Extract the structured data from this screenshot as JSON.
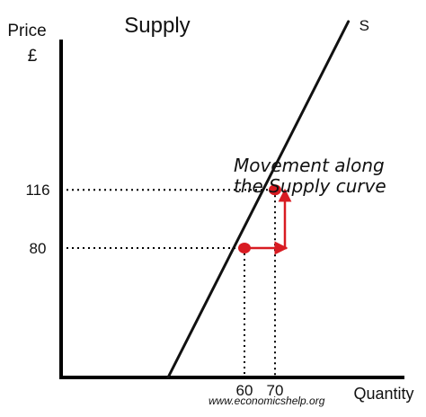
{
  "chart_data": {
    "type": "line",
    "title": "Supply",
    "ylabel": "Price",
    "ylabel_unit": "£",
    "xlabel": "Quantity",
    "xlim": [
      0,
      100
    ],
    "ylim": [
      0,
      200
    ],
    "grid": false,
    "series": [
      {
        "name": "S",
        "x": [
          35,
          94
        ],
        "y": [
          0,
          220
        ],
        "color": "#111111"
      }
    ],
    "points": [
      {
        "x": 60,
        "y": 80,
        "color": "#d81b22"
      },
      {
        "x": 70,
        "y": 116,
        "color": "#d81b22"
      }
    ],
    "x_ticks": [
      {
        "value": 60,
        "label": "60"
      },
      {
        "value": 70,
        "label": "70"
      }
    ],
    "y_ticks": [
      {
        "value": 80,
        "label": "80"
      },
      {
        "value": 116,
        "label": "116"
      }
    ],
    "annotation": [
      "Movement along",
      "the Supply curve"
    ],
    "arrow_color": "#d81b22",
    "credit": "www.economicshelp.org"
  }
}
